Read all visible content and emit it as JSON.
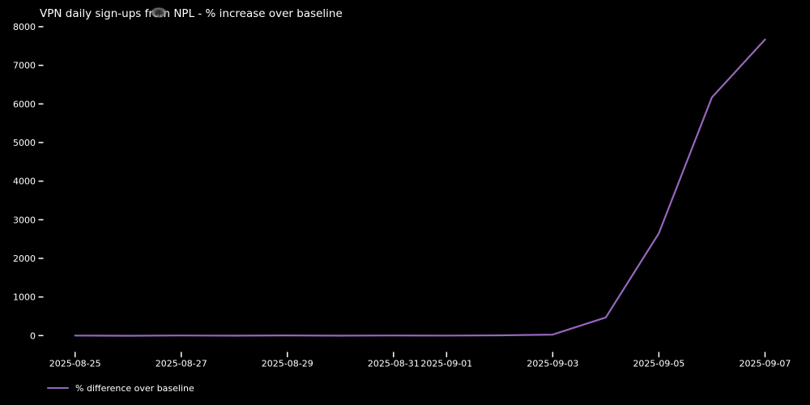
{
  "window": {
    "background": "#000000",
    "text_color": "#ffffff"
  },
  "chart_data": {
    "type": "line",
    "title": "VPN daily sign-ups from NPL - % increase over baseline",
    "x": [
      "2025-08-25",
      "2025-08-26",
      "2025-08-27",
      "2025-08-28",
      "2025-08-29",
      "2025-08-30",
      "2025-08-31",
      "2025-09-01",
      "2025-09-02",
      "2025-09-03",
      "2025-09-04",
      "2025-09-05",
      "2025-09-06",
      "2025-09-07"
    ],
    "series": [
      {
        "name": "% difference over baseline",
        "values": [
          0,
          -5,
          3,
          -2,
          4,
          -3,
          2,
          0,
          6,
          25,
          470,
          2650,
          6170,
          7670
        ]
      }
    ],
    "x_tick_labels": [
      "2025-08-25",
      "2025-08-27",
      "2025-08-29",
      "2025-08-31",
      "2025-09-01",
      "2025-09-03",
      "2025-09-05",
      "2025-09-07"
    ],
    "y_ticks": [
      0,
      1000,
      2000,
      3000,
      4000,
      5000,
      6000,
      7000,
      8000
    ],
    "ylim": [
      0,
      8000
    ],
    "xlabel": "",
    "ylabel": "",
    "grid": false,
    "legend": [
      "% difference over baseline"
    ],
    "legend_position": "lower-left-below-axes",
    "line_color": "#9467bd",
    "background": "#000000",
    "text_color": "#ffffff"
  }
}
